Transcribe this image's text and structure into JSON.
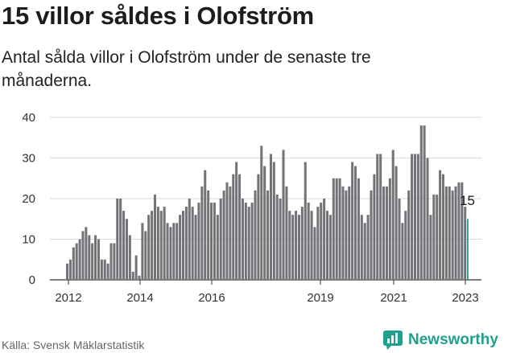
{
  "header": {
    "title": "15 villor såldes i Olofström",
    "subtitle": "Antal sålda villor i Olofström under de senaste tre månaderna."
  },
  "footer": {
    "source": "Källa: Svensk Mäklarstatistik",
    "brand": "Newsworthy"
  },
  "colors": {
    "bar": "#737378",
    "highlight": "#1aa394",
    "grid": "#d9d9d9",
    "axis": "#333333",
    "brand": "#1fa08e"
  },
  "chart_data": {
    "type": "bar",
    "yticks": [
      0,
      10,
      20,
      30,
      40
    ],
    "ylim": [
      0,
      40
    ],
    "xticks": [
      "2012",
      "2014",
      "2016",
      "2019",
      "2021",
      "2023"
    ],
    "callout": "15",
    "values": [
      4,
      5,
      8,
      9,
      10,
      12,
      13,
      11,
      9,
      11,
      10,
      5,
      5,
      4,
      9,
      9,
      20,
      20,
      17,
      15,
      11,
      2,
      6,
      1,
      14,
      12,
      16,
      17,
      21,
      18,
      17,
      18,
      14,
      13,
      14,
      14,
      16,
      17,
      18,
      20,
      18,
      16,
      19,
      23,
      27,
      22,
      19,
      19,
      16,
      20,
      22,
      24,
      23,
      26,
      29,
      26,
      20,
      19,
      18,
      19,
      22,
      26,
      33,
      28,
      22,
      31,
      29,
      21,
      20,
      32,
      23,
      17,
      16,
      17,
      16,
      18,
      29,
      19,
      17,
      13,
      18,
      19,
      20,
      17,
      16,
      25,
      25,
      25,
      23,
      22,
      23,
      29,
      28,
      25,
      16,
      14,
      16,
      22,
      26,
      31,
      31,
      23,
      23,
      25,
      32,
      28,
      20,
      14,
      17,
      22,
      31,
      31,
      31,
      38,
      38,
      30,
      16,
      21,
      21,
      27,
      26,
      23,
      23,
      22,
      23,
      24,
      24,
      18,
      15
    ],
    "highlight_last": true
  }
}
